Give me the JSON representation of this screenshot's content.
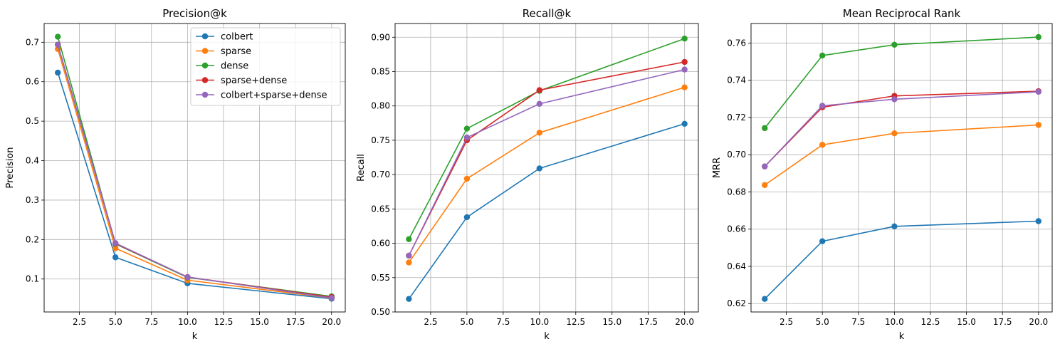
{
  "chart_data": [
    {
      "type": "line",
      "title": "Precision@k",
      "xlabel": "k",
      "ylabel": "Precision",
      "x": [
        1,
        5,
        10,
        20
      ],
      "xlim": [
        0.05,
        20.95
      ],
      "ylim": [
        0.0165,
        0.7475
      ],
      "xticks": [
        "2.5",
        "5.0",
        "7.5",
        "10.0",
        "12.5",
        "15.0",
        "17.5",
        "20.0"
      ],
      "yticks": [
        "0.1",
        "0.2",
        "0.3",
        "0.4",
        "0.5",
        "0.6",
        "0.7"
      ],
      "grid": true,
      "legend": "top-right",
      "series": [
        {
          "name": "colbert",
          "color": "#1f77b4",
          "values": [
            0.623,
            0.155,
            0.089,
            0.05
          ]
        },
        {
          "name": "sparse",
          "color": "#ff7f0e",
          "values": [
            0.683,
            0.178,
            0.097,
            0.052
          ]
        },
        {
          "name": "dense",
          "color": "#2ca02c",
          "values": [
            0.714,
            0.189,
            0.104,
            0.056
          ]
        },
        {
          "name": "sparse+dense",
          "color": "#d62728",
          "values": [
            0.694,
            0.19,
            0.105,
            0.054
          ]
        },
        {
          "name": "colbert+sparse+dense",
          "color": "#9467bd",
          "values": [
            0.694,
            0.191,
            0.105,
            0.052
          ]
        }
      ]
    },
    {
      "type": "line",
      "title": "Recall@k",
      "xlabel": "k",
      "ylabel": "Recall",
      "x": [
        1,
        5,
        10,
        20
      ],
      "xlim": [
        0.05,
        20.95
      ],
      "ylim": [
        0.5,
        0.92
      ],
      "xticks": [
        "2.5",
        "5.0",
        "7.5",
        "10.0",
        "12.5",
        "15.0",
        "17.5",
        "20.0"
      ],
      "yticks": [
        "0.50",
        "0.55",
        "0.60",
        "0.65",
        "0.70",
        "0.75",
        "0.80",
        "0.85",
        "0.90"
      ],
      "grid": true,
      "series": [
        {
          "name": "colbert",
          "color": "#1f77b4",
          "values": [
            0.519,
            0.638,
            0.709,
            0.774
          ]
        },
        {
          "name": "sparse",
          "color": "#ff7f0e",
          "values": [
            0.572,
            0.694,
            0.761,
            0.827
          ]
        },
        {
          "name": "dense",
          "color": "#2ca02c",
          "values": [
            0.606,
            0.767,
            0.822,
            0.898
          ]
        },
        {
          "name": "sparse+dense",
          "color": "#d62728",
          "values": [
            0.582,
            0.75,
            0.823,
            0.864
          ]
        },
        {
          "name": "colbert+sparse+dense",
          "color": "#9467bd",
          "values": [
            0.582,
            0.754,
            0.803,
            0.853
          ]
        }
      ]
    },
    {
      "type": "line",
      "title": "Mean Reciprocal Rank",
      "xlabel": "k",
      "ylabel": "MRR",
      "x": [
        1,
        5,
        10,
        20
      ],
      "xlim": [
        0.05,
        20.95
      ],
      "ylim": [
        0.6155,
        0.7705
      ],
      "xticks": [
        "2.5",
        "5.0",
        "7.5",
        "10.0",
        "12.5",
        "15.0",
        "17.5",
        "20.0"
      ],
      "yticks": [
        "0.62",
        "0.64",
        "0.66",
        "0.68",
        "0.70",
        "0.72",
        "0.74",
        "0.76"
      ],
      "grid": true,
      "series": [
        {
          "name": "colbert",
          "color": "#1f77b4",
          "values": [
            0.6225,
            0.6535,
            0.6615,
            0.6643
          ]
        },
        {
          "name": "sparse",
          "color": "#ff7f0e",
          "values": [
            0.6837,
            0.7053,
            0.7115,
            0.716
          ]
        },
        {
          "name": "dense",
          "color": "#2ca02c",
          "values": [
            0.7143,
            0.7533,
            0.7591,
            0.7632
          ]
        },
        {
          "name": "sparse+dense",
          "color": "#d62728",
          "values": [
            0.6937,
            0.7255,
            0.7316,
            0.7341
          ]
        },
        {
          "name": "colbert+sparse+dense",
          "color": "#9467bd",
          "values": [
            0.6937,
            0.7263,
            0.7298,
            0.7338
          ]
        }
      ]
    }
  ]
}
